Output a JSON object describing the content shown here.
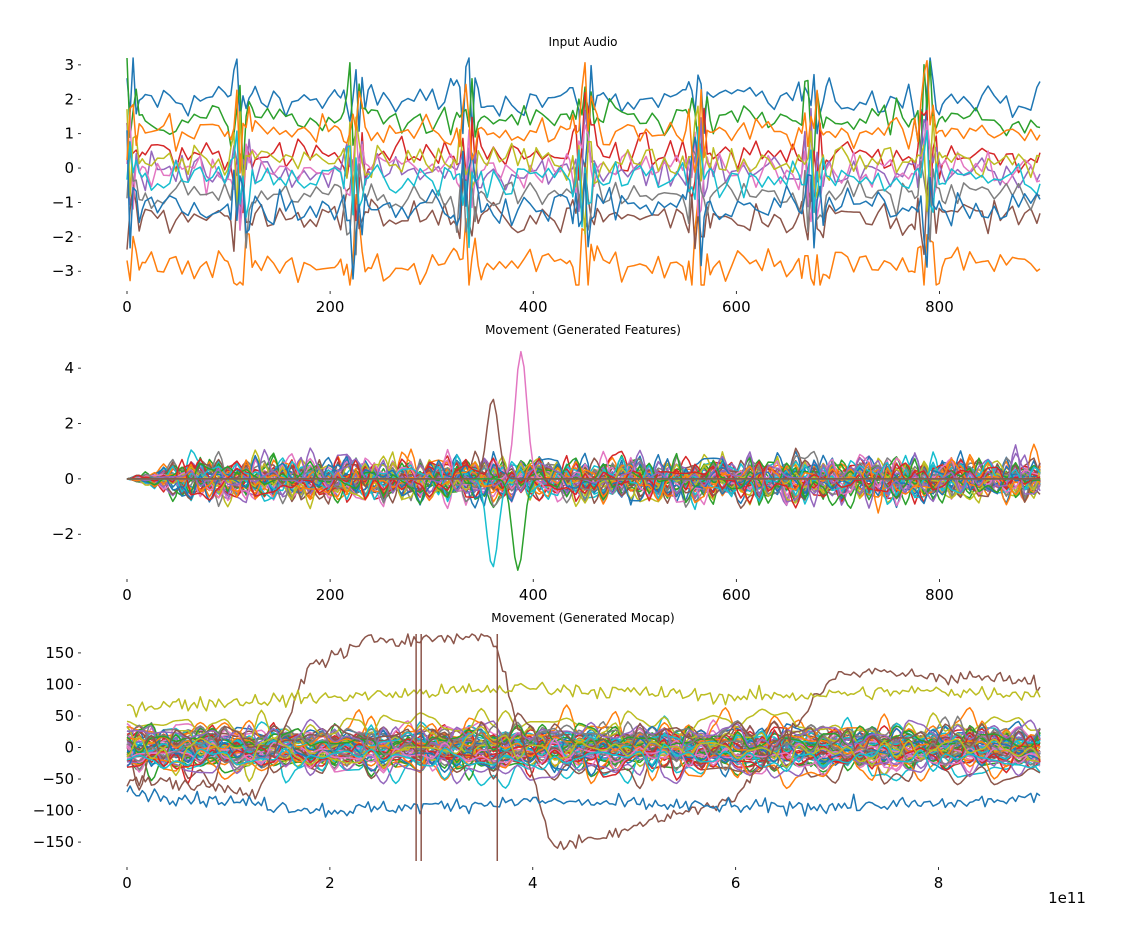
{
  "palette": [
    "#1f77b4",
    "#ff7f0e",
    "#2ca02c",
    "#d62728",
    "#9467bd",
    "#8c564b",
    "#e377c2",
    "#7f7f7f",
    "#bcbd22",
    "#17becf"
  ],
  "chart_data": [
    {
      "type": "line",
      "title": "Input Audio",
      "xlim": [
        0,
        899
      ],
      "ylim": [
        -3.4,
        3.2
      ],
      "xticks": [
        0,
        200,
        400,
        600,
        800
      ],
      "xticklabels": [
        "0",
        "200",
        "400",
        "600",
        "800"
      ],
      "yticks": [
        3,
        2,
        1,
        0,
        -1,
        -2,
        -3
      ],
      "yticklabels": [
        "3",
        "2",
        "1",
        "0",
        "−1",
        "−2",
        "−3"
      ],
      "grid": false,
      "legend": "none",
      "num_series": 12,
      "series_levels": [
        2.0,
        -2.8,
        1.4,
        0.4,
        -0.1,
        -1.4,
        0.0,
        -0.8,
        0.2,
        -0.3,
        -1.1,
        1.1
      ],
      "spike_positions": [
        0,
        112,
        224,
        336,
        450,
        562,
        675,
        788
      ]
    },
    {
      "type": "line",
      "title": "Movement (Generated Features)",
      "xlim": [
        0,
        899
      ],
      "ylim": [
        -3.4,
        4.8
      ],
      "xticks": [
        0,
        200,
        400,
        600,
        800
      ],
      "xticklabels": [
        "0",
        "200",
        "400",
        "600",
        "800"
      ],
      "yticks": [
        4,
        2,
        0,
        -2
      ],
      "yticklabels": [
        "4",
        "2",
        "0",
        "−2"
      ],
      "grid": false,
      "legend": "none",
      "num_series": 45,
      "peaks": [
        {
          "x": 388,
          "y": 4.6
        },
        {
          "x": 360,
          "y": -3.2
        },
        {
          "x": 385,
          "y": -3.3
        },
        {
          "x": 360,
          "y": 2.9
        }
      ]
    },
    {
      "type": "line",
      "title": "Movement (Generated Mocap)",
      "xlim": [
        0,
        900000000000.0
      ],
      "ylim": [
        -180,
        180
      ],
      "xticks": [
        0,
        200000000000.0,
        400000000000.0,
        600000000000.0,
        800000000000.0
      ],
      "xticklabels": [
        "0",
        "2",
        "4",
        "6",
        "8"
      ],
      "x_offset_label": "1e11",
      "yticks": [
        150,
        100,
        50,
        0,
        -50,
        -100,
        -150
      ],
      "yticklabels": [
        "150",
        "100",
        "50",
        "0",
        "−50",
        "−100",
        "−150"
      ],
      "grid": false,
      "legend": "none",
      "num_series": 60,
      "highlighted_series": [
        {
          "base": 40,
          "amp": 60,
          "color": "#8c564b",
          "x": [
            0,
            130000000000.0,
            180000000000.0,
            250000000000.0,
            280000000000.0,
            360000000000.0,
            420000000000.0,
            600000000000.0,
            700000000000.0,
            850000000000.0,
            900000000000.0
          ],
          "y": [
            -50,
            -70,
            130,
            175,
            170,
            180,
            -160,
            -80,
            120,
            110,
            100
          ]
        },
        {
          "base": -90,
          "color": "#1f77b4",
          "x": [
            0,
            200000000000.0,
            400000000000.0,
            600000000000.0,
            800000000000.0,
            900000000000.0
          ],
          "y": [
            -70,
            -100,
            -85,
            -95,
            -90,
            -80
          ]
        },
        {
          "base": 70,
          "color": "#bcbd22",
          "x": [
            0,
            200000000000.0,
            400000000000.0,
            600000000000.0,
            800000000000.0,
            900000000000.0
          ],
          "y": [
            65,
            80,
            95,
            80,
            90,
            85
          ]
        }
      ],
      "vertical_spikes": [
        285000000000.0,
        290000000000.0,
        365000000000.0
      ]
    }
  ]
}
